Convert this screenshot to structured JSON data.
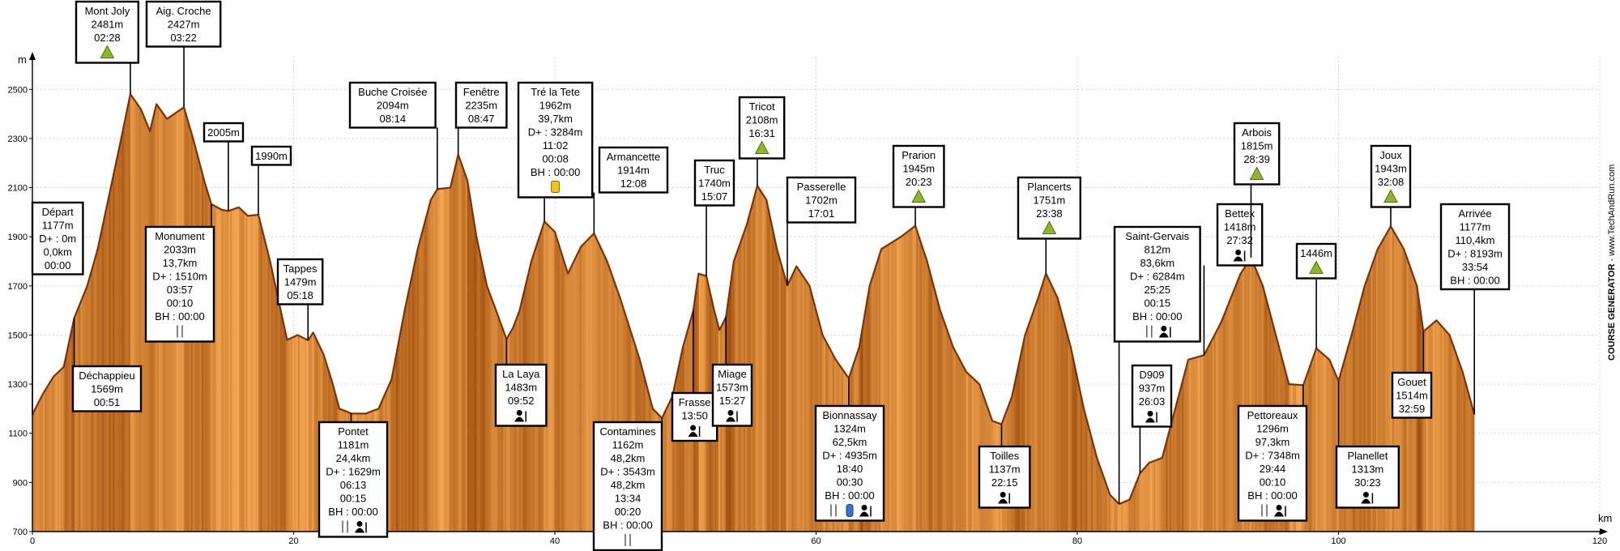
{
  "chart_data": {
    "type": "area",
    "xlabel": "km",
    "ylabel": "m",
    "xlim": [
      0,
      120
    ],
    "ylim": [
      700,
      2600
    ],
    "xticks": [
      0,
      20,
      40,
      60,
      80,
      100,
      120
    ],
    "yticks": [
      700,
      900,
      1100,
      1300,
      1500,
      1700,
      1900,
      2100,
      2300,
      2500
    ],
    "grid": true,
    "credit_bold": "COURSE GENERATOR",
    "credit_light": " - www.TechAndRun.com",
    "colors": {
      "fill_light": "#f4a348",
      "fill_dark": "#a8520e",
      "outline": "#7a3306"
    },
    "profile": [
      [
        0,
        1177
      ],
      [
        0.8,
        1260
      ],
      [
        1.6,
        1330
      ],
      [
        2.4,
        1370
      ],
      [
        3.2,
        1569
      ],
      [
        4.2,
        1700
      ],
      [
        5,
        1850
      ],
      [
        5.8,
        2050
      ],
      [
        6.8,
        2300
      ],
      [
        7.5,
        2481
      ],
      [
        8.3,
        2420
      ],
      [
        9,
        2330
      ],
      [
        9.5,
        2440
      ],
      [
        10.3,
        2380
      ],
      [
        11.6,
        2427
      ],
      [
        12.3,
        2300
      ],
      [
        13.2,
        2120
      ],
      [
        13.7,
        2033
      ],
      [
        14.5,
        2010
      ],
      [
        15,
        2005
      ],
      [
        15.8,
        2020
      ],
      [
        16.5,
        1985
      ],
      [
        17.3,
        1990
      ],
      [
        18.2,
        1800
      ],
      [
        19.5,
        1480
      ],
      [
        20.3,
        1500
      ],
      [
        21.1,
        1479
      ],
      [
        21.5,
        1510
      ],
      [
        22.3,
        1420
      ],
      [
        23,
        1300
      ],
      [
        23.5,
        1200
      ],
      [
        24,
        1190
      ],
      [
        24.4,
        1181
      ],
      [
        25.5,
        1180
      ],
      [
        26.5,
        1200
      ],
      [
        27.5,
        1320
      ],
      [
        28.5,
        1600
      ],
      [
        29.5,
        1850
      ],
      [
        30.5,
        2050
      ],
      [
        31,
        2094
      ],
      [
        32,
        2100
      ],
      [
        32.6,
        2235
      ],
      [
        33.3,
        2130
      ],
      [
        34,
        1900
      ],
      [
        34.8,
        1700
      ],
      [
        35.5,
        1600
      ],
      [
        36.3,
        1483
      ],
      [
        36.8,
        1530
      ],
      [
        37.3,
        1600
      ],
      [
        38.2,
        1800
      ],
      [
        39.2,
        1962
      ],
      [
        40,
        1920
      ],
      [
        41,
        1750
      ],
      [
        42,
        1860
      ],
      [
        43,
        1914
      ],
      [
        44,
        1800
      ],
      [
        45,
        1650
      ],
      [
        46.5,
        1400
      ],
      [
        47.5,
        1200
      ],
      [
        48.2,
        1162
      ],
      [
        49,
        1250
      ],
      [
        49.8,
        1450
      ],
      [
        50.6,
        1600
      ],
      [
        51,
        1750
      ],
      [
        51.6,
        1740
      ],
      [
        52.2,
        1600
      ],
      [
        52.6,
        1520
      ],
      [
        53.1,
        1573
      ],
      [
        53.7,
        1800
      ],
      [
        54.7,
        1950
      ],
      [
        55.5,
        2108
      ],
      [
        56.2,
        2050
      ],
      [
        57,
        1850
      ],
      [
        57.8,
        1702
      ],
      [
        58.5,
        1780
      ],
      [
        59.5,
        1700
      ],
      [
        60.5,
        1500
      ],
      [
        61.5,
        1400
      ],
      [
        62.5,
        1324
      ],
      [
        63.3,
        1450
      ],
      [
        64.1,
        1700
      ],
      [
        65,
        1850
      ],
      [
        66.5,
        1900
      ],
      [
        67.6,
        1945
      ],
      [
        68.5,
        1800
      ],
      [
        69.5,
        1600
      ],
      [
        70.5,
        1450
      ],
      [
        71.5,
        1350
      ],
      [
        72.5,
        1300
      ],
      [
        73.5,
        1150
      ],
      [
        74.2,
        1137
      ],
      [
        75,
        1250
      ],
      [
        76,
        1500
      ],
      [
        77,
        1650
      ],
      [
        77.6,
        1751
      ],
      [
        78.5,
        1650
      ],
      [
        79.5,
        1450
      ],
      [
        80.5,
        1200
      ],
      [
        81.5,
        1000
      ],
      [
        82.5,
        850
      ],
      [
        83.2,
        812
      ],
      [
        84,
        830
      ],
      [
        84.8,
        937
      ],
      [
        85.5,
        980
      ],
      [
        86.5,
        1000
      ],
      [
        87.5,
        1200
      ],
      [
        88.5,
        1400
      ],
      [
        89.7,
        1418
      ],
      [
        91,
        1550
      ],
      [
        92.5,
        1750
      ],
      [
        93.3,
        1815
      ],
      [
        94.2,
        1700
      ],
      [
        95.2,
        1500
      ],
      [
        96.2,
        1300
      ],
      [
        97.3,
        1296
      ],
      [
        98.3,
        1446
      ],
      [
        99.3,
        1400
      ],
      [
        100,
        1313
      ],
      [
        101,
        1500
      ],
      [
        102,
        1700
      ],
      [
        103,
        1850
      ],
      [
        104,
        1943
      ],
      [
        105,
        1850
      ],
      [
        106,
        1700
      ],
      [
        106.5,
        1514
      ],
      [
        107.5,
        1560
      ],
      [
        108.5,
        1500
      ],
      [
        109.5,
        1350
      ],
      [
        110.4,
        1177
      ]
    ],
    "waypoints": [
      {
        "lines": [
          "Départ",
          "1177m",
          "D+ : 0m",
          "0,0km",
          "00:00"
        ],
        "km": 0,
        "icons": []
      },
      {
        "lines": [
          "Déchappieu",
          "1569m",
          "00:51"
        ],
        "km": 3.2,
        "icons": []
      },
      {
        "lines": [
          "Mont Joly",
          "2481m",
          "02:28"
        ],
        "km": 7.5,
        "icons": [
          "summit"
        ]
      },
      {
        "lines": [
          "Aig. Croche",
          "2427m",
          "03:22"
        ],
        "km": 11.6,
        "icons": []
      },
      {
        "lines": [
          "Monument",
          "2033m",
          "13,7km",
          "D+ : 1510m",
          "03:57",
          "00:10",
          "BH : 00:00"
        ],
        "km": 13.7,
        "icons": [
          "food"
        ]
      },
      {
        "lines": [
          "2005m"
        ],
        "km": 15,
        "icons": []
      },
      {
        "lines": [
          "1990m"
        ],
        "km": 17.3,
        "icons": []
      },
      {
        "lines": [
          "Tappes",
          "1479m",
          "05:18"
        ],
        "km": 21.1,
        "icons": []
      },
      {
        "lines": [
          "Pontet",
          "1181m",
          "24,4km",
          "D+ : 1629m",
          "06:13",
          "00:15",
          "BH : 00:00"
        ],
        "km": 24.4,
        "icons": [
          "food",
          "assist"
        ]
      },
      {
        "lines": [
          "Buche Croisée",
          "2094m",
          "08:14"
        ],
        "km": 31,
        "icons": []
      },
      {
        "lines": [
          "Fenêtre",
          "2235m",
          "08:47"
        ],
        "km": 32.6,
        "icons": []
      },
      {
        "lines": [
          "La Laya",
          "1483m",
          "09:52"
        ],
        "km": 36.3,
        "icons": [
          "assist"
        ]
      },
      {
        "lines": [
          "Tré la Tete",
          "1962m",
          "39,7km",
          "D+ : 3284m",
          "11:02",
          "00:08",
          "BH : 00:00"
        ],
        "km": 39.2,
        "icons": [
          "drink"
        ]
      },
      {
        "lines": [
          "Armancette",
          "1914m",
          "12:08"
        ],
        "km": 43,
        "icons": []
      },
      {
        "lines": [
          "Contamines",
          "1162m",
          "48,2km",
          "D+ : 3543m",
          "48,2km",
          "13:34",
          "00:20",
          "BH : 00:00"
        ],
        "km": 48.2,
        "icons": [
          "food"
        ]
      },
      {
        "lines": [
          "Frasse",
          "13:50"
        ],
        "km": 50.6,
        "icons": [
          "assist"
        ]
      },
      {
        "lines": [
          "Truc",
          "1740m",
          "15:07"
        ],
        "km": 51.6,
        "icons": []
      },
      {
        "lines": [
          "Miage",
          "1573m",
          "15:27"
        ],
        "km": 53.1,
        "icons": [
          "assist"
        ]
      },
      {
        "lines": [
          "Tricot",
          "2108m",
          "16:31"
        ],
        "km": 55.5,
        "icons": [
          "summit"
        ]
      },
      {
        "lines": [
          "Passerelle",
          "1702m",
          "17:01"
        ],
        "km": 57.8,
        "icons": []
      },
      {
        "lines": [
          "Bionnassay",
          "1324m",
          "62,5km",
          "D+ : 4935m",
          "18:40",
          "00:30",
          "BH : 00:00"
        ],
        "km": 62.5,
        "icons": [
          "food",
          "water",
          "assist"
        ]
      },
      {
        "lines": [
          "Prarion",
          "1945m",
          "20:23"
        ],
        "km": 67.6,
        "icons": [
          "summit"
        ]
      },
      {
        "lines": [
          "Toilles",
          "1137m",
          "22:15"
        ],
        "km": 74.2,
        "icons": [
          "assist"
        ]
      },
      {
        "lines": [
          "Plancerts",
          "1751m",
          "23:38"
        ],
        "km": 77.6,
        "icons": [
          "summit"
        ]
      },
      {
        "lines": [
          "Saint-Gervais",
          "812m",
          "83,6km",
          "D+ : 6284m",
          "25:25",
          "00:15",
          "BH : 00:00"
        ],
        "km": 83.2,
        "icons": [
          "food",
          "assist"
        ]
      },
      {
        "lines": [
          "D909",
          "937m",
          "26:03"
        ],
        "km": 84.8,
        "icons": [
          "assist"
        ]
      },
      {
        "lines": [
          "Bettex",
          "1418m",
          "27:32"
        ],
        "km": 89.7,
        "icons": [
          "assist"
        ]
      },
      {
        "lines": [
          "Arbois",
          "1815m",
          "28:39"
        ],
        "km": 93.3,
        "icons": [
          "summit"
        ]
      },
      {
        "lines": [
          "Pettoreaux",
          "1296m",
          "97,3km",
          "D+ : 7348m",
          "29:44",
          "00:10",
          "BH : 00:00"
        ],
        "km": 97.3,
        "icons": [
          "food",
          "assist"
        ]
      },
      {
        "lines": [
          "1446m"
        ],
        "km": 98.3,
        "icons": [
          "summit"
        ]
      },
      {
        "lines": [
          "Planellet",
          "1313m",
          "30:23"
        ],
        "km": 100,
        "icons": [
          "assist"
        ]
      },
      {
        "lines": [
          "Joux",
          "1943m",
          "32:08"
        ],
        "km": 104,
        "icons": [
          "summit"
        ]
      },
      {
        "lines": [
          "Gouet",
          "1514m",
          "32:59"
        ],
        "km": 106.5,
        "icons": []
      },
      {
        "lines": [
          "Arrivée",
          "1177m",
          "110,4km",
          "D+ : 8193m",
          "33:54",
          "BH : 00:00"
        ],
        "km": 110.4,
        "icons": []
      }
    ]
  }
}
